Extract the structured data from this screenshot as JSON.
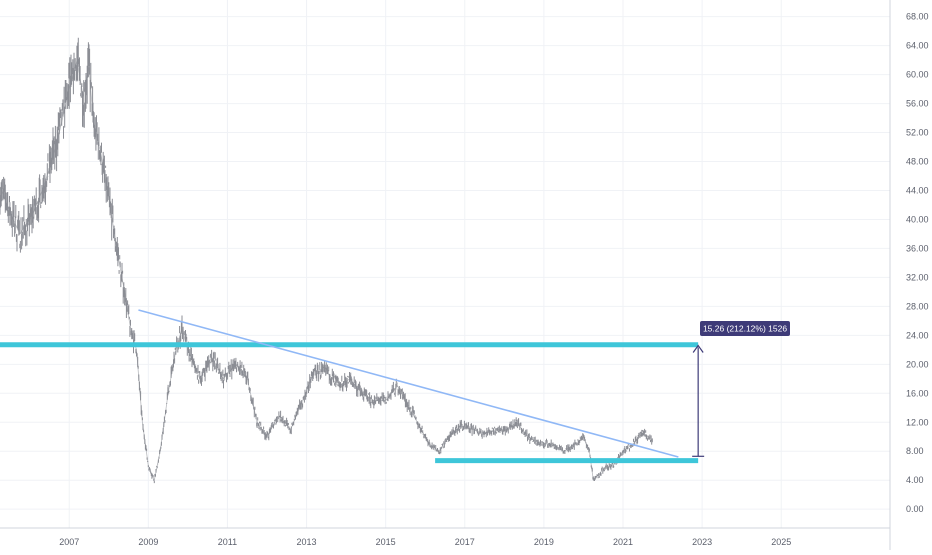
{
  "chart_data": {
    "type": "line",
    "x_ticks": [
      "2007",
      "2009",
      "2011",
      "2013",
      "2015",
      "2017",
      "2019",
      "2021",
      "2023",
      "2025"
    ],
    "y_ticks": [
      "0.00",
      "4.00",
      "8.00",
      "12.00",
      "16.00",
      "20.00",
      "24.00",
      "28.00",
      "32.00",
      "36.00",
      "40.00",
      "44.00",
      "48.00",
      "52.00",
      "56.00",
      "60.00",
      "64.00",
      "68.00"
    ],
    "ylim": [
      -2.6,
      70.3
    ],
    "xlim": [
      2005.25,
      2027.75
    ],
    "grid": true,
    "series": [
      {
        "values": [
          {
            "x": 2005.25,
            "y": 44.5
          },
          {
            "x": 2005.5,
            "y": 41
          },
          {
            "x": 2005.75,
            "y": 38
          },
          {
            "x": 2006.0,
            "y": 40
          },
          {
            "x": 2006.25,
            "y": 43
          },
          {
            "x": 2006.5,
            "y": 47
          },
          {
            "x": 2006.75,
            "y": 52
          },
          {
            "x": 2007.0,
            "y": 58
          },
          {
            "x": 2007.2,
            "y": 62
          },
          {
            "x": 2007.35,
            "y": 57
          },
          {
            "x": 2007.5,
            "y": 61
          },
          {
            "x": 2007.6,
            "y": 54
          },
          {
            "x": 2007.8,
            "y": 49
          },
          {
            "x": 2008.0,
            "y": 43
          },
          {
            "x": 2008.2,
            "y": 36
          },
          {
            "x": 2008.4,
            "y": 30
          },
          {
            "x": 2008.55,
            "y": 25
          },
          {
            "x": 2008.7,
            "y": 22
          },
          {
            "x": 2008.85,
            "y": 12
          },
          {
            "x": 2009.0,
            "y": 6
          },
          {
            "x": 2009.15,
            "y": 4
          },
          {
            "x": 2009.3,
            "y": 8
          },
          {
            "x": 2009.5,
            "y": 16
          },
          {
            "x": 2009.7,
            "y": 22
          },
          {
            "x": 2009.85,
            "y": 25
          },
          {
            "x": 2010.0,
            "y": 22
          },
          {
            "x": 2010.3,
            "y": 18
          },
          {
            "x": 2010.6,
            "y": 21
          },
          {
            "x": 2010.9,
            "y": 18
          },
          {
            "x": 2011.2,
            "y": 20
          },
          {
            "x": 2011.5,
            "y": 18
          },
          {
            "x": 2011.75,
            "y": 12
          },
          {
            "x": 2012.0,
            "y": 10
          },
          {
            "x": 2012.3,
            "y": 13
          },
          {
            "x": 2012.6,
            "y": 11
          },
          {
            "x": 2012.9,
            "y": 15
          },
          {
            "x": 2013.2,
            "y": 19
          },
          {
            "x": 2013.5,
            "y": 19
          },
          {
            "x": 2013.8,
            "y": 17
          },
          {
            "x": 2014.1,
            "y": 18
          },
          {
            "x": 2014.4,
            "y": 16
          },
          {
            "x": 2014.7,
            "y": 15
          },
          {
            "x": 2015.0,
            "y": 15
          },
          {
            "x": 2015.3,
            "y": 17
          },
          {
            "x": 2015.5,
            "y": 15
          },
          {
            "x": 2015.8,
            "y": 12
          },
          {
            "x": 2016.1,
            "y": 9
          },
          {
            "x": 2016.35,
            "y": 8
          },
          {
            "x": 2016.6,
            "y": 10
          },
          {
            "x": 2016.9,
            "y": 11.5
          },
          {
            "x": 2017.2,
            "y": 11
          },
          {
            "x": 2017.5,
            "y": 10.5
          },
          {
            "x": 2017.8,
            "y": 11
          },
          {
            "x": 2018.1,
            "y": 11
          },
          {
            "x": 2018.3,
            "y": 12
          },
          {
            "x": 2018.6,
            "y": 10
          },
          {
            "x": 2018.9,
            "y": 9
          },
          {
            "x": 2019.2,
            "y": 9
          },
          {
            "x": 2019.5,
            "y": 8
          },
          {
            "x": 2019.8,
            "y": 9
          },
          {
            "x": 2020.0,
            "y": 10
          },
          {
            "x": 2020.15,
            "y": 8
          },
          {
            "x": 2020.25,
            "y": 4
          },
          {
            "x": 2020.5,
            "y": 5.5
          },
          {
            "x": 2020.75,
            "y": 6
          },
          {
            "x": 2021.0,
            "y": 8
          },
          {
            "x": 2021.25,
            "y": 9
          },
          {
            "x": 2021.5,
            "y": 10.5
          },
          {
            "x": 2021.75,
            "y": 9.5
          }
        ]
      }
    ],
    "annotations": {
      "trendline": {
        "x1": 2008.75,
        "y1": 27.5,
        "x2": 2022.4,
        "y2": 7.2,
        "color": "#90b8f6"
      },
      "resistance_line": {
        "y": 22.7,
        "x_start": 2005.25,
        "x_end": 2022.9,
        "color": "#3ec6d9"
      },
      "support_line": {
        "y": 6.7,
        "x_start": 2016.25,
        "x_end": 2022.9,
        "color": "#3ec6d9"
      },
      "measure": {
        "x": 2022.9,
        "y_from": 7.3,
        "y_to": 22.6,
        "label": "15.26 (212.12%) 1526",
        "color": "#3e3b78"
      }
    },
    "colors": {
      "price": "#8b8d94",
      "grid": "#f0f2f6",
      "axis_text": "#5b5f6b"
    }
  }
}
